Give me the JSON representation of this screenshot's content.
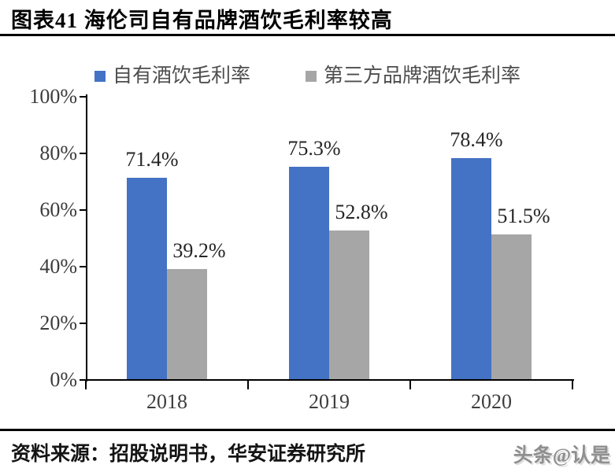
{
  "title": {
    "text": "图表41 海伦司自有品牌酒饮毛利率较高"
  },
  "legend": {
    "items": [
      {
        "label": "自有酒饮毛利率",
        "color": "#4472C4"
      },
      {
        "label": "第三方品牌酒饮毛利率",
        "color": "#A6A6A6"
      }
    ]
  },
  "chart_data": {
    "type": "bar",
    "title": "图表41 海伦司自有品牌酒饮毛利率较高",
    "categories": [
      "2018",
      "2019",
      "2020"
    ],
    "series": [
      {
        "name": "自有酒饮毛利率",
        "color": "#4472C4",
        "values": [
          71.4,
          75.3,
          78.4
        ],
        "labels": [
          "71.4%",
          "75.3%",
          "78.4%"
        ]
      },
      {
        "name": "第三方品牌酒饮毛利率",
        "color": "#A6A6A6",
        "values": [
          39.2,
          52.8,
          51.5
        ],
        "labels": [
          "39.2%",
          "52.8%",
          "51.5%"
        ]
      }
    ],
    "y_axis": {
      "min": 0,
      "max": 100,
      "ticks": [
        "100%",
        "80%",
        "60%",
        "40%",
        "20%",
        "0%"
      ]
    },
    "grid": false,
    "legend_position": "top",
    "data_labels": true
  },
  "footer": {
    "source": "资料来源：招股说明书，华安证券研究所",
    "watermark": "头条@认是"
  },
  "colors": {
    "own_brand_bar": "#4472C4",
    "third_party_bar": "#A6A6A6",
    "axis": "#000000",
    "rule": "#000000"
  }
}
